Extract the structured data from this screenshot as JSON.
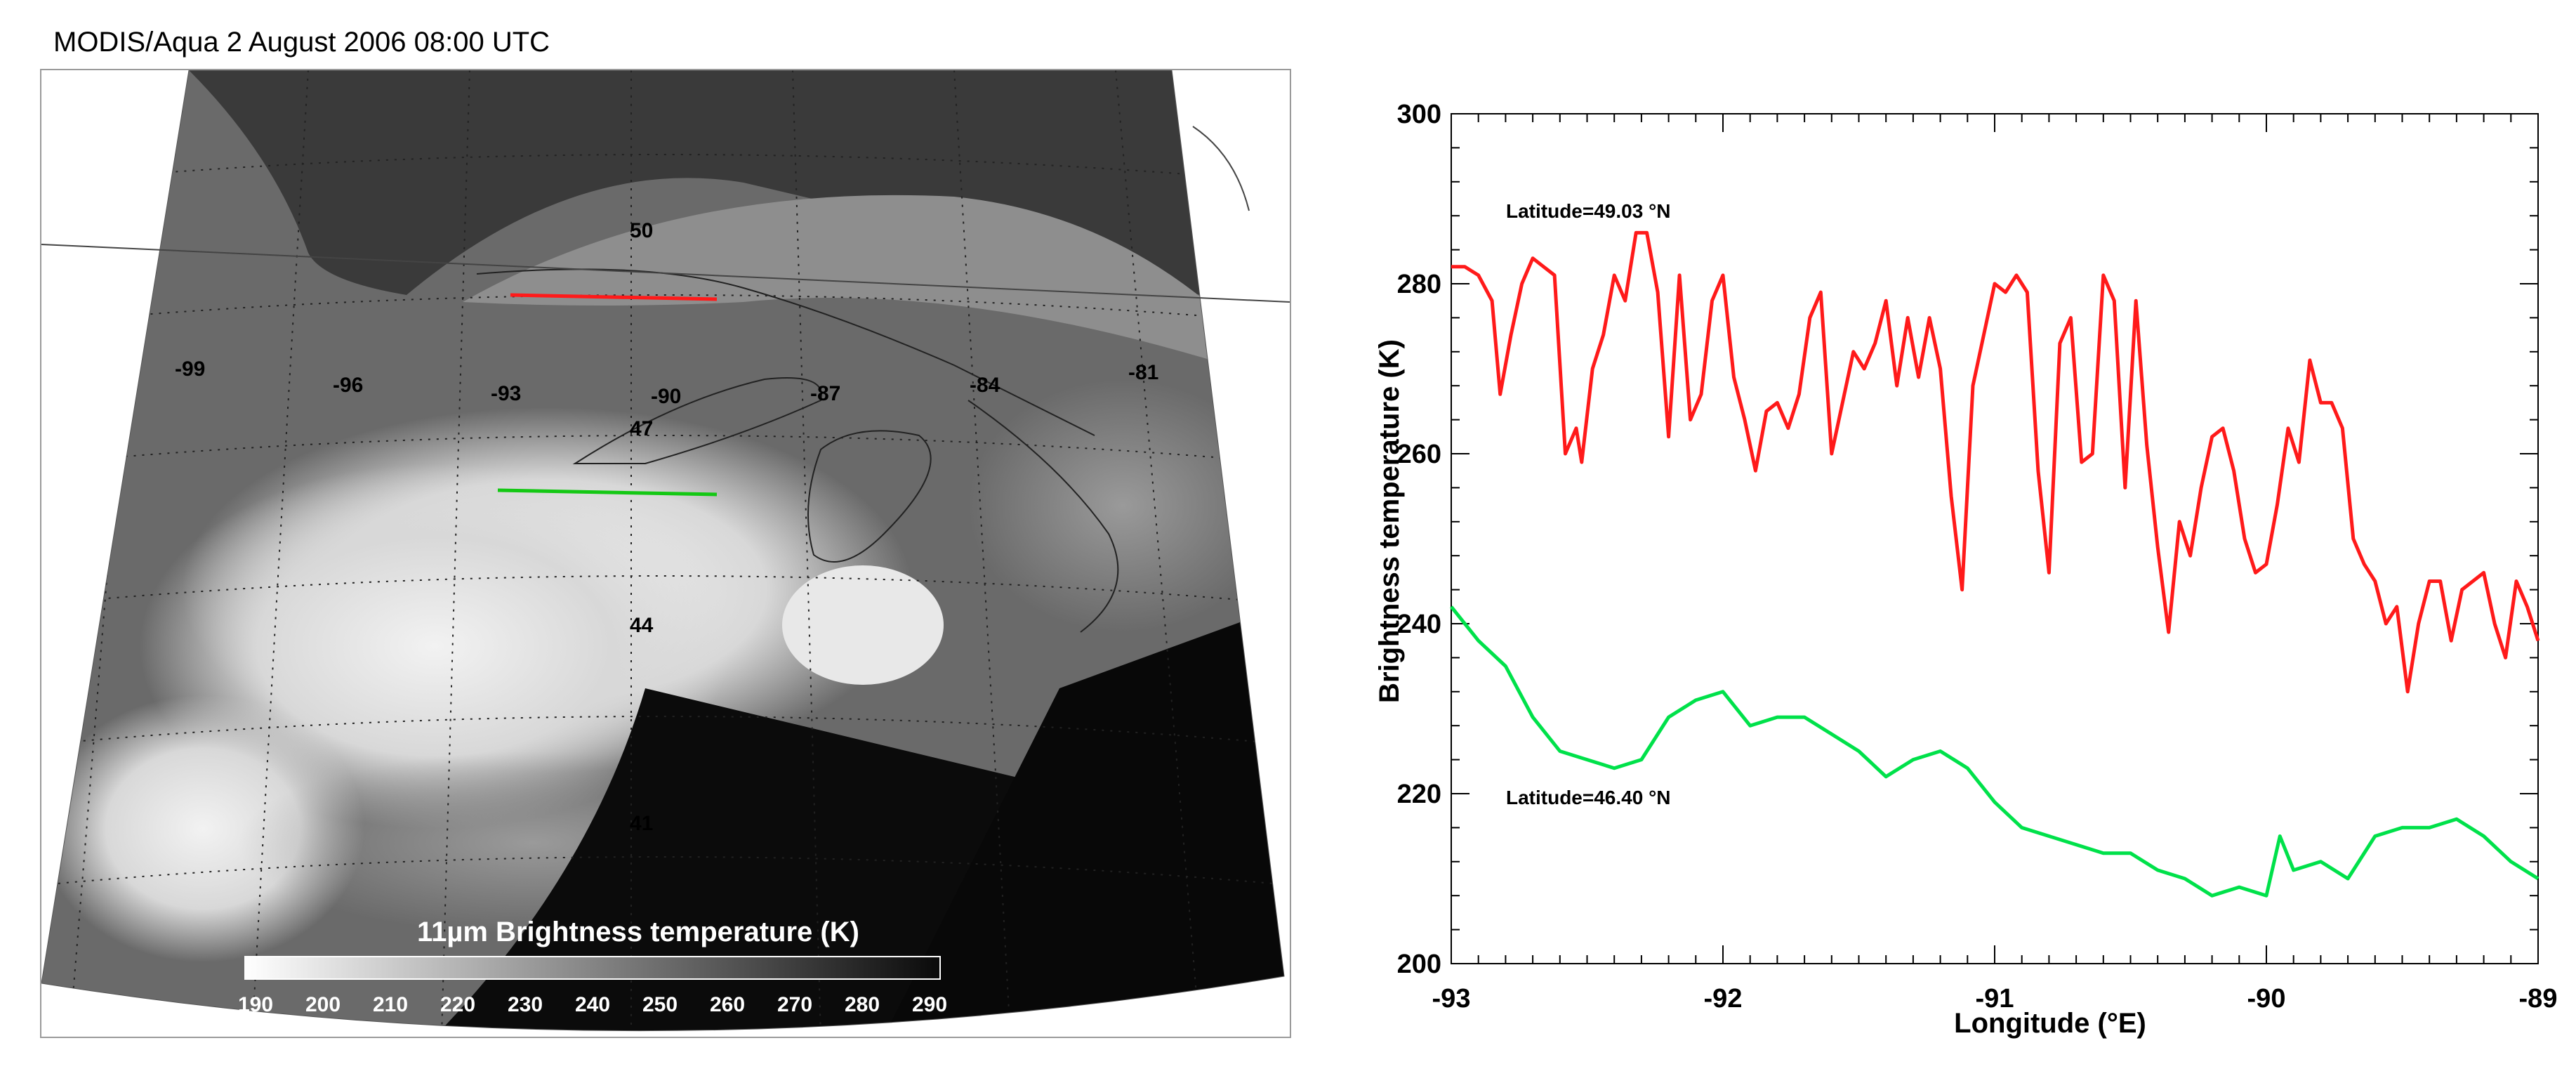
{
  "map": {
    "title": "MODIS/Aqua 2 August 2006 08:00 UTC",
    "longitude_labels": [
      "-99",
      "-96",
      "-93",
      "-90",
      "-87",
      "-84",
      "-81"
    ],
    "latitude_labels": [
      "50",
      "47",
      "44",
      "41"
    ],
    "colorbar": {
      "title": "11µm Brightness temperature (K)",
      "ticks": [
        "190",
        "200",
        "210",
        "220",
        "230",
        "240",
        "250",
        "260",
        "270",
        "280",
        "290"
      ],
      "range": [
        190,
        290
      ]
    },
    "transect_colors": {
      "north": "#ff1a1a",
      "south": "#14c814"
    }
  },
  "chart_data": {
    "type": "line",
    "xlabel": "Longitude (°E)",
    "ylabel": "Brightness temperature (K)",
    "xlim": [
      -93,
      -89
    ],
    "ylim": [
      200,
      300
    ],
    "x_ticks": [
      "-93",
      "-92",
      "-91",
      "-90",
      "-89"
    ],
    "y_ticks": [
      "200",
      "220",
      "240",
      "260",
      "280",
      "300"
    ],
    "grid": false,
    "annotations": [
      "Latitude=49.03 °N",
      "Latitude=46.40 °N"
    ],
    "series": [
      {
        "color": "#ff1a1a",
        "x": [
          -93.0,
          -92.95,
          -92.9,
          -92.85,
          -92.82,
          -92.78,
          -92.74,
          -92.7,
          -92.66,
          -92.62,
          -92.58,
          -92.54,
          -92.52,
          -92.48,
          -92.44,
          -92.4,
          -92.36,
          -92.32,
          -92.28,
          -92.24,
          -92.2,
          -92.16,
          -92.12,
          -92.08,
          -92.04,
          -92.0,
          -91.96,
          -91.92,
          -91.88,
          -91.84,
          -91.8,
          -91.76,
          -91.72,
          -91.68,
          -91.64,
          -91.6,
          -91.56,
          -91.52,
          -91.48,
          -91.44,
          -91.4,
          -91.36,
          -91.32,
          -91.28,
          -91.24,
          -91.2,
          -91.16,
          -91.12,
          -91.08,
          -91.04,
          -91.0,
          -90.96,
          -90.92,
          -90.88,
          -90.84,
          -90.8,
          -90.76,
          -90.72,
          -90.68,
          -90.64,
          -90.6,
          -90.56,
          -90.52,
          -90.48,
          -90.44,
          -90.4,
          -90.36,
          -90.32,
          -90.28,
          -90.24,
          -90.2,
          -90.16,
          -90.12,
          -90.08,
          -90.04,
          -90.0,
          -89.96,
          -89.92,
          -89.88,
          -89.84,
          -89.8,
          -89.76,
          -89.72,
          -89.68,
          -89.64,
          -89.6,
          -89.56,
          -89.52,
          -89.48,
          -89.44,
          -89.4,
          -89.36,
          -89.32,
          -89.28,
          -89.24,
          -89.2,
          -89.16,
          -89.12,
          -89.08,
          -89.04,
          -89.0
        ],
        "y": [
          282,
          282,
          281,
          278,
          267,
          274,
          280,
          283,
          282,
          281,
          260,
          263,
          259,
          270,
          274,
          281,
          278,
          286,
          286,
          279,
          262,
          281,
          264,
          267,
          278,
          281,
          269,
          264,
          258,
          265,
          266,
          263,
          267,
          276,
          279,
          260,
          266,
          272,
          270,
          273,
          278,
          268,
          276,
          269,
          276,
          270,
          255,
          244,
          268,
          274,
          280,
          279,
          281,
          279,
          258,
          246,
          273,
          276,
          259,
          260,
          281,
          278,
          256,
          278,
          261,
          249,
          239,
          252,
          248,
          256,
          262,
          263,
          258,
          250,
          246,
          247,
          254,
          263,
          259,
          271,
          266,
          266,
          263,
          250,
          247,
          245,
          240,
          242,
          232,
          240,
          245,
          245,
          238,
          244,
          245,
          246,
          240,
          236,
          245,
          242,
          238
        ]
      },
      {
        "color": "#00e14a",
        "x": [
          -93.0,
          -92.9,
          -92.8,
          -92.7,
          -92.6,
          -92.5,
          -92.4,
          -92.3,
          -92.2,
          -92.1,
          -92.0,
          -91.9,
          -91.8,
          -91.7,
          -91.6,
          -91.5,
          -91.4,
          -91.3,
          -91.2,
          -91.1,
          -91.0,
          -90.9,
          -90.8,
          -90.7,
          -90.6,
          -90.5,
          -90.4,
          -90.3,
          -90.2,
          -90.1,
          -90.0,
          -89.95,
          -89.9,
          -89.8,
          -89.7,
          -89.6,
          -89.5,
          -89.4,
          -89.3,
          -89.2,
          -89.1,
          -89.0
        ],
        "y": [
          242,
          238,
          235,
          229,
          225,
          224,
          223,
          224,
          229,
          231,
          232,
          228,
          229,
          229,
          227,
          225,
          222,
          224,
          225,
          223,
          219,
          216,
          215,
          214,
          213,
          213,
          211,
          210,
          208,
          209,
          208,
          215,
          211,
          212,
          210,
          215,
          216,
          216,
          217,
          215,
          212,
          210
        ]
      }
    ]
  }
}
